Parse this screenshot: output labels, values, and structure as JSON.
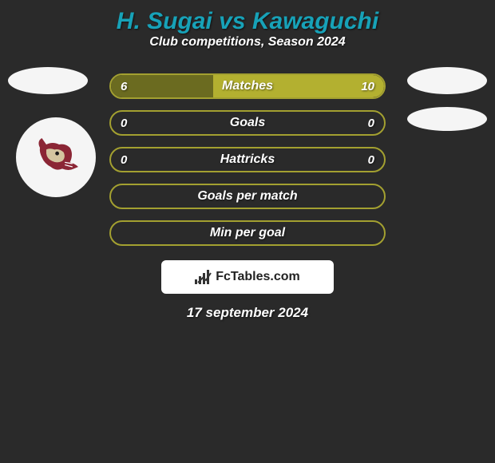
{
  "background_color": "#2a2a2a",
  "header": {
    "title_player1": "H. Sugai",
    "title_vs": " vs ",
    "title_player2": "Kawaguchi",
    "title_color": "#17a2b8",
    "title_fontsize": 30,
    "subtitle": "Club competitions, Season 2024",
    "subtitle_color": "#ffffff",
    "subtitle_fontsize": 16
  },
  "avatars": {
    "placeholder_bg": "#f5f5f5",
    "team_logo": "coyote"
  },
  "bars": {
    "border_color": "#a3a030",
    "label_color": "#ffffff",
    "value_color": "#ffffff",
    "label_fontsize": 16,
    "value_fontsize": 15,
    "fill_left_color": "#6b6b20",
    "fill_right_color": "#b3b030",
    "items": [
      {
        "label": "Matches",
        "left": "6",
        "right": "10",
        "left_pct": 37.5,
        "right_pct": 62.5,
        "show_values": true
      },
      {
        "label": "Goals",
        "left": "0",
        "right": "0",
        "left_pct": 0,
        "right_pct": 0,
        "show_values": true
      },
      {
        "label": "Hattricks",
        "left": "0",
        "right": "0",
        "left_pct": 0,
        "right_pct": 0,
        "show_values": true
      },
      {
        "label": "Goals per match",
        "left": "",
        "right": "",
        "left_pct": 0,
        "right_pct": 0,
        "show_values": false
      },
      {
        "label": "Min per goal",
        "left": "",
        "right": "",
        "left_pct": 0,
        "right_pct": 0,
        "show_values": false
      }
    ]
  },
  "footer": {
    "logo_bg": "#ffffff",
    "logo_text": "FcTables.com",
    "logo_text_color": "#222222",
    "logo_fontsize": 16,
    "date": "17 september 2024",
    "date_color": "#ffffff",
    "date_fontsize": 17
  }
}
